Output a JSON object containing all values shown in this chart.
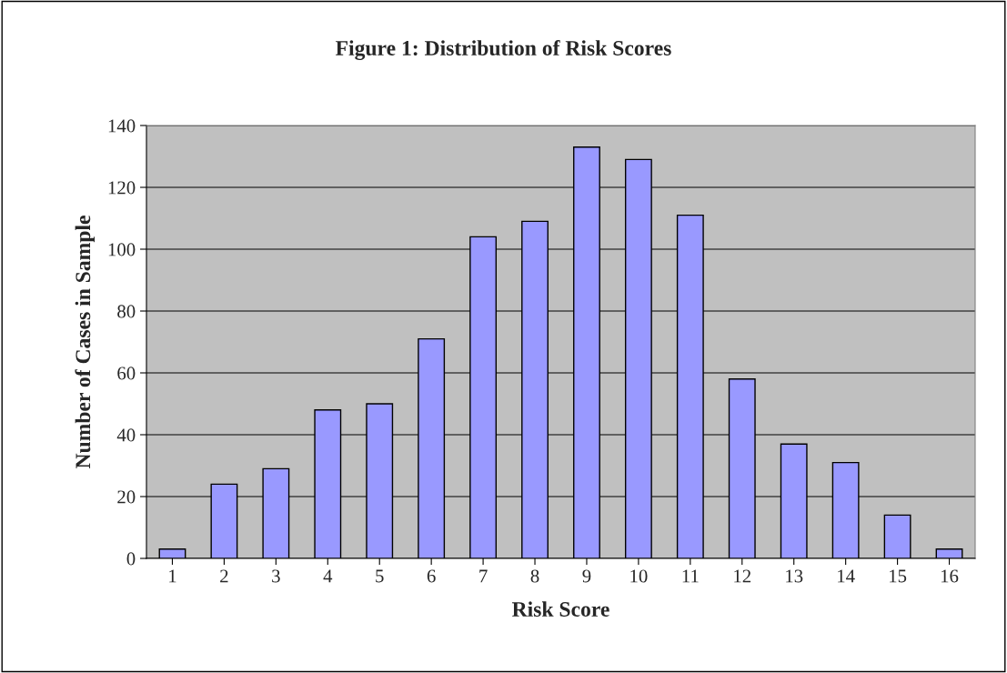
{
  "chart_data": {
    "type": "bar",
    "title": "Figure 1: Distribution of Risk Scores",
    "xlabel": "Risk Score",
    "ylabel": "Number of Cases in Sample",
    "categories": [
      "1",
      "2",
      "3",
      "4",
      "5",
      "6",
      "7",
      "8",
      "9",
      "10",
      "11",
      "12",
      "13",
      "14",
      "15",
      "16"
    ],
    "values": [
      3,
      24,
      29,
      48,
      50,
      71,
      104,
      109,
      133,
      129,
      111,
      58,
      37,
      31,
      14,
      3
    ],
    "color": "#9999ff",
    "ylim": [
      0,
      140
    ],
    "yticks": [
      0,
      20,
      40,
      60,
      80,
      100,
      120,
      140
    ],
    "grid": "y",
    "legend": false
  }
}
